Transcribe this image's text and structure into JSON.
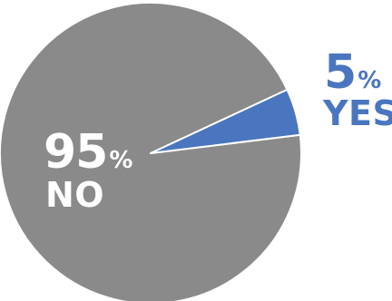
{
  "chart_data": {
    "type": "pie",
    "slices": [
      {
        "label": "NO",
        "value": 95,
        "display_value": "95",
        "unit": "%",
        "color": "#8a8a8b",
        "text_color": "#ffffff"
      },
      {
        "label": "YES",
        "value": 5,
        "display_value": "5",
        "unit": "%",
        "color": "#4a76bf",
        "text_color": "#4a76bf"
      }
    ],
    "slice_border_color": "#ffffff",
    "title": "",
    "legend": "none"
  }
}
